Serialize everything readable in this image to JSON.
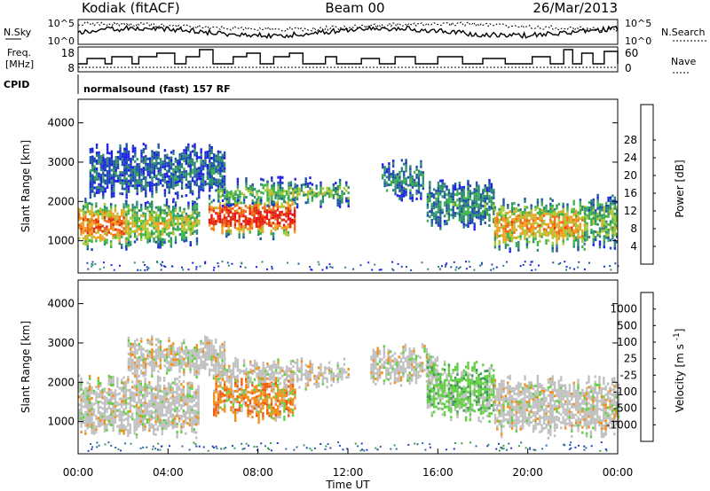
{
  "header": {
    "station": "Kodiak (fitACF)",
    "beam": "Beam 00",
    "date": "26/Mar/2013"
  },
  "summary_panels": {
    "nsky_label": "N.Sky",
    "nsearch_label": "N.Search",
    "freq_label_line1": "Freq.",
    "freq_label_line2": "[MHz]",
    "nave_label": "Nave",
    "cpid_label": "CPID",
    "cpid_value": "normalsound (fast) 157 RF",
    "noise_left_ticks": [
      "10^5",
      "10^0"
    ],
    "noise_right_ticks": [
      "10^5",
      "10^0"
    ],
    "freq_ticks": [
      "18",
      "8"
    ],
    "nave_ticks": [
      "60",
      "0"
    ]
  },
  "chart_data": [
    {
      "type": "heatmap",
      "panel": "power",
      "ylabel": "Slant Range [km]",
      "xlabel": "",
      "x_range_hours": [
        0,
        24
      ],
      "ylim": [
        180,
        4600
      ],
      "yticks": [
        "1000",
        "2000",
        "3000",
        "4000"
      ],
      "colorbar_label": "Power [dB]",
      "colorbar_ticks": [
        "4",
        "8",
        "12",
        "16",
        "20",
        "24",
        "28"
      ],
      "colorbar_colors": [
        "#1e20e8",
        "#1d50a8",
        "#2e8a72",
        "#3cb24a",
        "#a8c832",
        "#f0a020",
        "#f06a12",
        "#e03010",
        "#e81010"
      ],
      "echo_bands": [
        {
          "t0": 0.0,
          "t1": 2.1,
          "r0": 950,
          "r1": 1900,
          "level": 0.62
        },
        {
          "t0": 2.1,
          "t1": 4.2,
          "r0": 1000,
          "r1": 1900,
          "level": 0.45
        },
        {
          "t0": 4.2,
          "t1": 5.4,
          "r0": 1100,
          "r1": 1900,
          "level": 0.4
        },
        {
          "t0": 5.8,
          "t1": 9.6,
          "r0": 1250,
          "r1": 2000,
          "level": 0.78
        },
        {
          "t0": 6.2,
          "t1": 12.0,
          "r0": 2050,
          "r1": 2450,
          "level": 0.35
        },
        {
          "t0": 13.5,
          "t1": 15.3,
          "r0": 2250,
          "r1": 2900,
          "level": 0.22
        },
        {
          "t0": 15.5,
          "t1": 18.5,
          "r0": 1500,
          "r1": 2400,
          "level": 0.25
        },
        {
          "t0": 18.5,
          "t1": 22.5,
          "r0": 950,
          "r1": 1900,
          "level": 0.55
        },
        {
          "t0": 22.5,
          "t1": 24.0,
          "r0": 1000,
          "r1": 2000,
          "level": 0.35
        },
        {
          "t0": 0.5,
          "t1": 6.5,
          "r0": 2300,
          "r1": 3300,
          "level": 0.15
        }
      ]
    },
    {
      "type": "heatmap",
      "panel": "velocity",
      "ylabel": "Slant Range [km]",
      "xlabel": "Time UT",
      "x_range_hours": [
        0,
        24
      ],
      "ylim": [
        180,
        4600
      ],
      "yticks": [
        "1000",
        "2000",
        "3000",
        "4000"
      ],
      "xticks": [
        "00:00",
        "04:00",
        "08:00",
        "12:00",
        "16:00",
        "20:00",
        "00:00"
      ],
      "colorbar_label": "Velocity [m s^-1]",
      "colorbar_ticks": [
        "1000",
        "500",
        "100",
        "25",
        "-25",
        "-100",
        "-500",
        "-1000"
      ],
      "colorbar_colors": [
        "#2040c8",
        "#2e6aa0",
        "#3a9a50",
        "#60d040",
        "#c0c0c0",
        "#f0d020",
        "#f0901a",
        "#f05a10",
        "#e01010"
      ],
      "echo_bands": [
        {
          "t0": 0.0,
          "t1": 5.4,
          "r0": 800,
          "r1": 2000,
          "level": 0.5
        },
        {
          "t0": 6.0,
          "t1": 9.6,
          "r0": 1200,
          "r1": 2000,
          "level": 0.75
        },
        {
          "t0": 6.2,
          "t1": 12.0,
          "r0": 2050,
          "r1": 2450,
          "level": 0.5
        },
        {
          "t0": 13.0,
          "t1": 16.0,
          "r0": 2100,
          "r1": 2800,
          "level": 0.5
        },
        {
          "t0": 15.5,
          "t1": 18.5,
          "r0": 1200,
          "r1": 2400,
          "level": 0.3
        },
        {
          "t0": 18.5,
          "t1": 24.0,
          "r0": 800,
          "r1": 2000,
          "level": 0.5
        },
        {
          "t0": 2.2,
          "t1": 6.5,
          "r0": 2300,
          "r1": 3000,
          "level": 0.7
        }
      ]
    }
  ]
}
